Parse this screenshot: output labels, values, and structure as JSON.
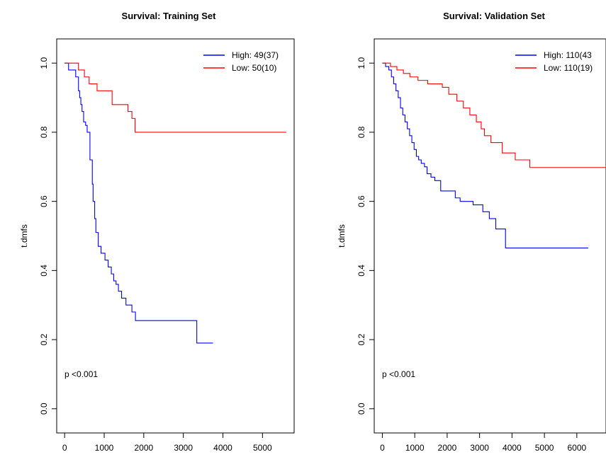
{
  "chart_data": [
    {
      "type": "line",
      "title": "Survival: Training Set",
      "xlabel": "",
      "ylabel": "t.dmfs",
      "xlim": [
        -200,
        5800
      ],
      "ylim": [
        -0.07,
        1.07
      ],
      "xticks": [
        "0",
        "1000",
        "2000",
        "3000",
        "4000",
        "5000"
      ],
      "yticks": [
        "0.0",
        "0.2",
        "0.4",
        "0.6",
        "0.8",
        "1.0"
      ],
      "annotation": "p <0.001",
      "legend_position": "top-right",
      "series": [
        {
          "name": "High: 49(37)",
          "color": "#0000ff",
          "step": true,
          "x": [
            0,
            100,
            280,
            350,
            380,
            410,
            440,
            480,
            530,
            570,
            640,
            700,
            720,
            760,
            790,
            850,
            920,
            1020,
            1100,
            1180,
            1240,
            1300,
            1360,
            1440,
            1550,
            1620,
            1700,
            1790,
            3340,
            3750
          ],
          "y": [
            1.0,
            0.98,
            0.96,
            0.92,
            0.9,
            0.88,
            0.86,
            0.83,
            0.82,
            0.8,
            0.72,
            0.65,
            0.6,
            0.55,
            0.51,
            0.47,
            0.45,
            0.43,
            0.41,
            0.39,
            0.37,
            0.36,
            0.34,
            0.32,
            0.3,
            0.3,
            0.28,
            0.255,
            0.19,
            0.19
          ]
        },
        {
          "name": "Low: 50(10)",
          "color": "#ff0000",
          "step": true,
          "x": [
            0,
            350,
            500,
            620,
            820,
            1200,
            1600,
            1700,
            1780,
            5600
          ],
          "y": [
            1.0,
            0.98,
            0.96,
            0.94,
            0.92,
            0.88,
            0.86,
            0.84,
            0.8,
            0.8
          ]
        }
      ]
    },
    {
      "type": "line",
      "title": "Survival: Validation Set",
      "xlabel": "",
      "ylabel": "t.dmfs",
      "xlim": [
        -250,
        6900
      ],
      "ylim": [
        -0.07,
        1.07
      ],
      "xticks": [
        "0",
        "1000",
        "2000",
        "3000",
        "4000",
        "5000",
        "6000"
      ],
      "yticks": [
        "0.0",
        "0.2",
        "0.4",
        "0.6",
        "0.8",
        "1.0"
      ],
      "annotation": "p <0.001",
      "legend_position": "top-right",
      "series": [
        {
          "name": "High: 110(43",
          "color": "#0000ff",
          "step": true,
          "x": [
            0,
            100,
            200,
            280,
            350,
            420,
            490,
            560,
            630,
            700,
            770,
            840,
            910,
            980,
            1050,
            1120,
            1200,
            1300,
            1380,
            1500,
            1620,
            1800,
            2250,
            2400,
            2800,
            3100,
            3300,
            3500,
            3800,
            5150,
            6350
          ],
          "y": [
            1.0,
            0.99,
            0.98,
            0.96,
            0.94,
            0.92,
            0.9,
            0.87,
            0.85,
            0.83,
            0.81,
            0.79,
            0.77,
            0.75,
            0.73,
            0.72,
            0.71,
            0.7,
            0.68,
            0.67,
            0.66,
            0.63,
            0.61,
            0.6,
            0.59,
            0.57,
            0.55,
            0.52,
            0.465,
            0.465,
            0.465
          ]
        },
        {
          "name": "Low: 110(19)",
          "color": "#ff0000",
          "step": true,
          "x": [
            0,
            250,
            450,
            650,
            850,
            1100,
            1400,
            1850,
            2050,
            2300,
            2500,
            2700,
            2900,
            3050,
            3150,
            3350,
            3700,
            4100,
            4550,
            6900
          ],
          "y": [
            1.0,
            0.99,
            0.98,
            0.97,
            0.96,
            0.95,
            0.94,
            0.93,
            0.91,
            0.89,
            0.87,
            0.85,
            0.83,
            0.81,
            0.79,
            0.77,
            0.74,
            0.72,
            0.698,
            0.698
          ]
        }
      ]
    }
  ]
}
